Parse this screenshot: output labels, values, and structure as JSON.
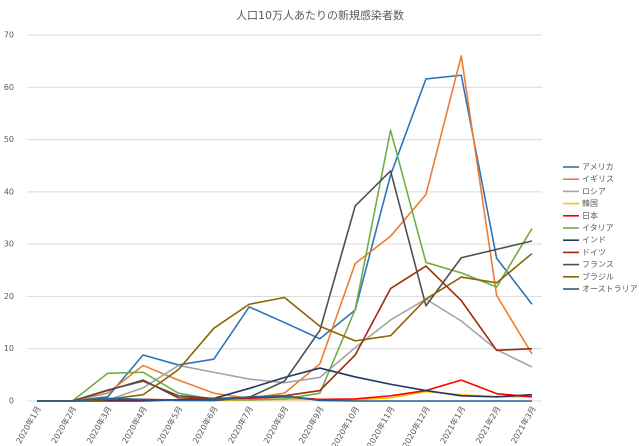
{
  "chart_data": {
    "type": "line",
    "title": "人口10万人あたりの新規感染者数",
    "categories": [
      "2020年1月",
      "2020年2月",
      "2020年3月",
      "2020年4月",
      "2020年5月",
      "2020年6月",
      "2020年7月",
      "2020年8月",
      "2020年9月",
      "2020年10月",
      "2020年11月",
      "2020年12月",
      "2021年1月",
      "2021年2月",
      "2021年3月"
    ],
    "ylim": [
      0,
      70
    ],
    "yticks": [
      0,
      10,
      20,
      30,
      40,
      50,
      60,
      70
    ],
    "grid": true,
    "legend": "right",
    "series": [
      {
        "name": "アメリカ",
        "color": "#2e75b6",
        "values": [
          0,
          0,
          0.8,
          8.8,
          6.9,
          8.0,
          18.0,
          15.0,
          11.9,
          17.4,
          43.2,
          61.6,
          62.3,
          27.3,
          18.5
        ]
      },
      {
        "name": "イギリス",
        "color": "#ed7d31",
        "values": [
          0,
          0,
          1.5,
          6.8,
          4.0,
          1.5,
          0.5,
          1.5,
          7.1,
          26.3,
          31.5,
          39.5,
          66.0,
          20.2,
          9.0
        ]
      },
      {
        "name": "ロシア",
        "color": "#a5a5a5",
        "values": [
          0,
          0,
          0.2,
          2.5,
          6.8,
          5.5,
          4.2,
          3.5,
          4.5,
          10.2,
          15.5,
          19.5,
          15.3,
          9.8,
          6.5
        ]
      },
      {
        "name": "韓国",
        "color": "#ffc000",
        "values": [
          0,
          0,
          0.3,
          0.3,
          0.1,
          0.1,
          0.2,
          0.3,
          0.3,
          0.2,
          0.6,
          1.8,
          1.2,
          0.8,
          0.8
        ]
      },
      {
        "name": "日本",
        "color": "#ff0000",
        "values": [
          0,
          0,
          0.1,
          0.3,
          0.2,
          0.1,
          0.5,
          0.8,
          0.3,
          0.4,
          1.0,
          2.0,
          4.0,
          1.4,
          0.8
        ]
      },
      {
        "name": "イタリア",
        "color": "#70ad47",
        "values": [
          0,
          0,
          5.3,
          5.5,
          1.5,
          0.3,
          0.2,
          0.4,
          1.5,
          17.5,
          51.8,
          26.5,
          24.5,
          21.8,
          33.0
        ]
      },
      {
        "name": "インド",
        "color": "#203864",
        "values": [
          0,
          0,
          0,
          0,
          0.2,
          0.5,
          2.4,
          4.5,
          6.3,
          4.6,
          3.2,
          2.0,
          1.0,
          0.8,
          1.2
        ]
      },
      {
        "name": "ドイツ",
        "color": "#9e2a0e",
        "values": [
          0,
          0,
          2.0,
          4.0,
          0.6,
          0.4,
          0.6,
          1.0,
          2.0,
          8.8,
          21.5,
          25.8,
          19.2,
          9.7,
          10.0
        ]
      },
      {
        "name": "フランス",
        "color": "#505050",
        "values": [
          0,
          0,
          2.1,
          3.8,
          1.0,
          0.5,
          0.7,
          3.8,
          13.5,
          37.3,
          44.0,
          18.2,
          27.4,
          29.0,
          30.6
        ]
      },
      {
        "name": "ブラジル",
        "color": "#8c6400",
        "values": [
          0,
          0,
          0.3,
          1.2,
          6.0,
          13.9,
          18.5,
          19.8,
          14.3,
          11.5,
          12.5,
          19.5,
          23.7,
          22.6,
          28.2
        ]
      },
      {
        "name": "オーストラリア",
        "color": "#255e91",
        "values": [
          0,
          0,
          0.5,
          0.3,
          0.1,
          0.1,
          0.8,
          1.0,
          0.1,
          0,
          0,
          0,
          0,
          0,
          0
        ]
      }
    ]
  }
}
